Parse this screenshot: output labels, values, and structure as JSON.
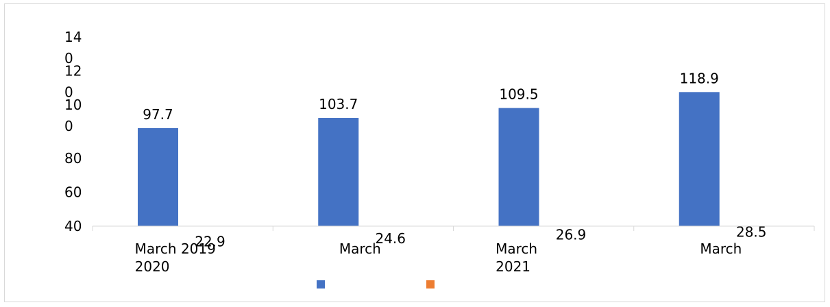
{
  "chart_data": {
    "type": "bar",
    "categories": [
      [
        "March 2019",
        "2020"
      ],
      [
        "March"
      ],
      [
        "March",
        "2021"
      ],
      [
        "March"
      ]
    ],
    "series": [
      {
        "name": "",
        "color": "#4472C4",
        "values": [
          97.7,
          103.7,
          109.5,
          118.9
        ]
      },
      {
        "name": "",
        "color": "#ED7D31",
        "values": [
          22.9,
          24.6,
          26.9,
          28.5
        ]
      }
    ],
    "data_labels": [
      [
        "97.7",
        "103.7",
        "109.5",
        "118.9"
      ],
      [
        "22.9",
        "24.6",
        "26.9",
        "28.5"
      ]
    ],
    "y_ticks": [
      {
        "value": 40,
        "lines": [
          "40"
        ]
      },
      {
        "value": 60,
        "lines": [
          "60"
        ]
      },
      {
        "value": 80,
        "lines": [
          "80"
        ]
      },
      {
        "value": 100,
        "lines": [
          "10",
          "0"
        ]
      },
      {
        "value": 120,
        "lines": [
          "12",
          "0"
        ]
      },
      {
        "value": 140,
        "lines": [
          "14",
          "0"
        ]
      }
    ],
    "ylim": [
      40,
      140
    ],
    "grid": false,
    "legend_position": "bottom",
    "title": "",
    "xlabel": "",
    "ylabel": ""
  }
}
